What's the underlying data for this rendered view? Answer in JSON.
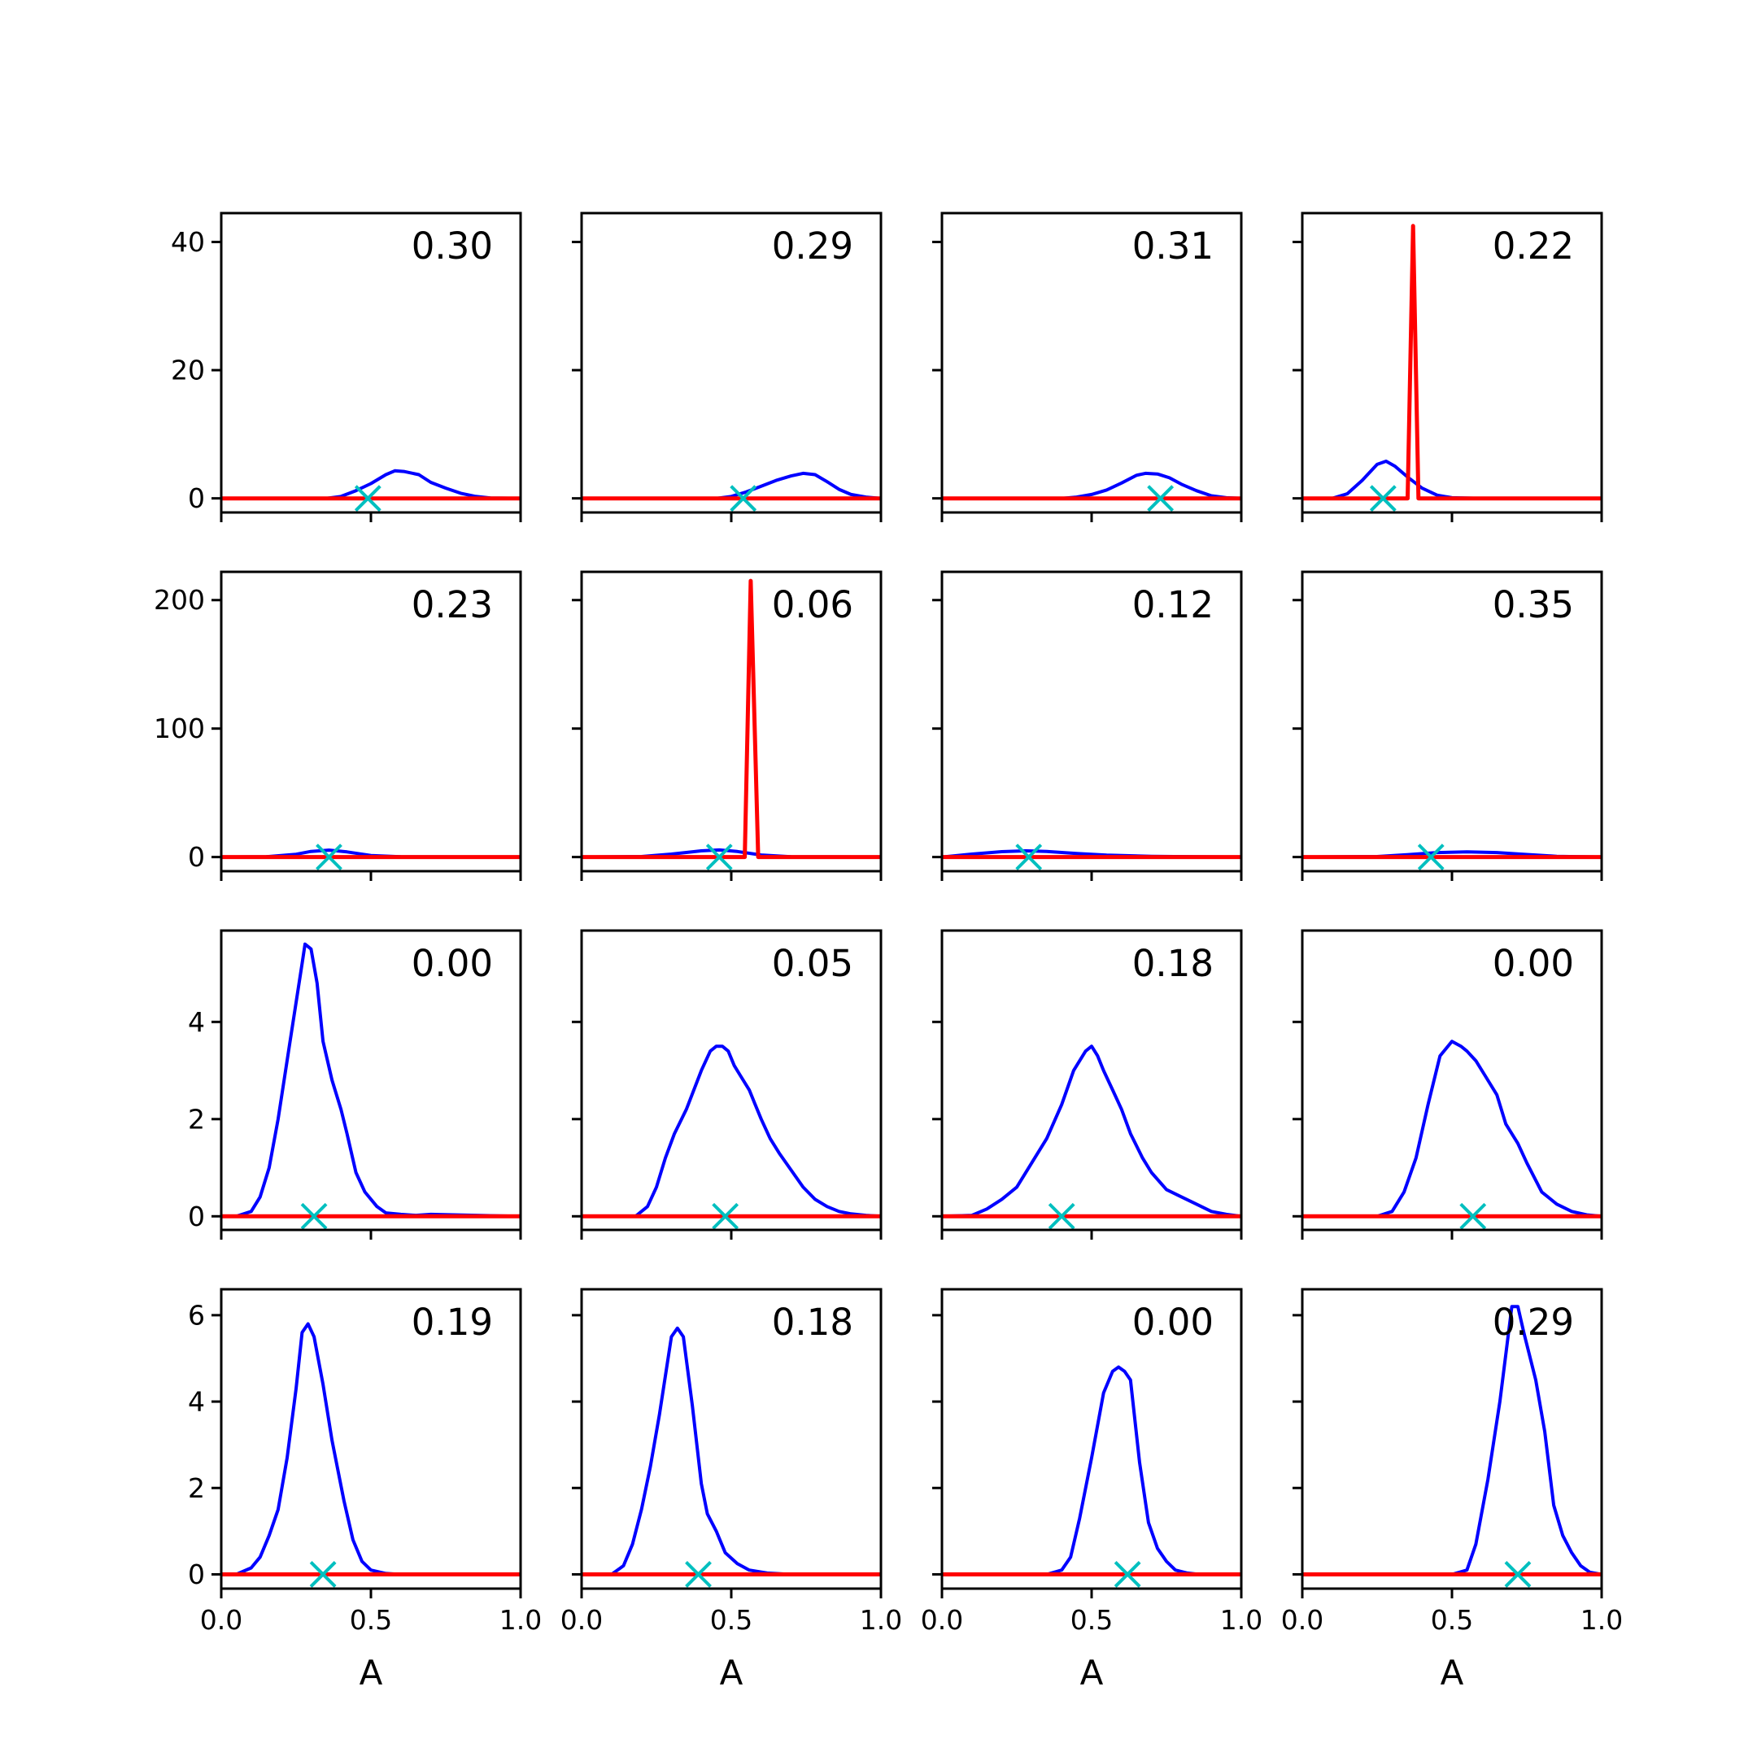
{
  "chart_data": {
    "type": "line",
    "layout": "4x4 grid of subplots, y axis shared per row, x axis shared per column",
    "xlabel": "A",
    "xlim": [
      0.0,
      1.0
    ],
    "xticks": [
      "0.0",
      "0.5",
      "1.0"
    ],
    "colors": {
      "blue_series": "#0000ff",
      "red_series": "#ff0000",
      "marker": "#00bfbf",
      "frame": "#000000"
    },
    "rows": [
      {
        "ylim": [
          -2.2,
          44.5
        ],
        "yticks": [
          {
            "value": 0,
            "label": "0"
          },
          {
            "value": 20,
            "label": "20"
          },
          {
            "value": 40,
            "label": "40"
          }
        ]
      },
      {
        "ylim": [
          -11,
          222
        ],
        "yticks": [
          {
            "value": 0,
            "label": "0"
          },
          {
            "value": 100,
            "label": "100"
          },
          {
            "value": 200,
            "label": "200"
          }
        ]
      },
      {
        "ylim": [
          -0.28,
          5.88
        ],
        "yticks": [
          {
            "value": 0,
            "label": "0"
          },
          {
            "value": 2,
            "label": "2"
          },
          {
            "value": 4,
            "label": "4"
          }
        ]
      },
      {
        "ylim": [
          -0.33,
          6.6
        ],
        "yticks": [
          {
            "value": 0,
            "label": "0"
          },
          {
            "value": 2,
            "label": "2"
          },
          {
            "value": 4,
            "label": "4"
          },
          {
            "value": 6,
            "label": "6"
          }
        ]
      }
    ],
    "panels": [
      {
        "row": 0,
        "col": 0,
        "annotation": "0.30",
        "marker_x": 0.49,
        "blue": {
          "x": [
            0,
            0.35,
            0.4,
            0.45,
            0.5,
            0.55,
            0.58,
            0.61,
            0.66,
            0.7,
            0.75,
            0.8,
            0.85,
            0.9,
            1.0
          ],
          "y": [
            0,
            0,
            0.3,
            1.2,
            2.3,
            3.7,
            4.3,
            4.2,
            3.7,
            2.5,
            1.6,
            0.8,
            0.3,
            0.05,
            0
          ]
        },
        "red": {
          "x": [
            0,
            1.0
          ],
          "y": [
            0,
            0
          ]
        }
      },
      {
        "row": 0,
        "col": 1,
        "annotation": "0.29",
        "marker_x": 0.54,
        "blue": {
          "x": [
            0,
            0.45,
            0.5,
            0.55,
            0.6,
            0.65,
            0.7,
            0.74,
            0.78,
            0.82,
            0.86,
            0.9,
            0.95,
            1.0
          ],
          "y": [
            0,
            0,
            0.3,
            1,
            1.9,
            2.8,
            3.5,
            3.9,
            3.7,
            2.6,
            1.4,
            0.6,
            0.2,
            0
          ]
        },
        "red": {
          "x": [
            0,
            1.0
          ],
          "y": [
            0,
            0
          ]
        }
      },
      {
        "row": 0,
        "col": 2,
        "annotation": "0.31",
        "marker_x": 0.73,
        "blue": {
          "x": [
            0,
            0.4,
            0.45,
            0.5,
            0.55,
            0.6,
            0.65,
            0.68,
            0.72,
            0.76,
            0.8,
            0.85,
            0.9,
            0.95,
            1.0
          ],
          "y": [
            0,
            0,
            0.2,
            0.6,
            1.3,
            2.4,
            3.6,
            3.9,
            3.8,
            3.2,
            2.2,
            1.2,
            0.4,
            0.1,
            0
          ]
        },
        "red": {
          "x": [
            0,
            1.0
          ],
          "y": [
            0,
            0
          ]
        }
      },
      {
        "row": 0,
        "col": 3,
        "annotation": "0.22",
        "marker_x": 0.27,
        "blue": {
          "x": [
            0,
            0.1,
            0.15,
            0.2,
            0.25,
            0.28,
            0.31,
            0.35,
            0.4,
            0.45,
            0.5,
            0.6,
            1.0
          ],
          "y": [
            0,
            0,
            0.7,
            2.8,
            5.3,
            5.8,
            5,
            3.4,
            1.6,
            0.5,
            0.1,
            0,
            0
          ]
        },
        "red": {
          "x": [
            0,
            0.352,
            0.37,
            0.388,
            1.0
          ],
          "y": [
            0,
            0,
            42.5,
            0,
            0
          ]
        }
      },
      {
        "row": 1,
        "col": 0,
        "annotation": "0.23",
        "marker_x": 0.36,
        "blue": {
          "x": [
            0,
            0.15,
            0.25,
            0.3,
            0.36,
            0.42,
            0.5,
            0.6,
            1.0
          ],
          "y": [
            0,
            0.3,
            2.2,
            4.4,
            5.4,
            4,
            1.2,
            0.2,
            0
          ]
        },
        "red": {
          "x": [
            0,
            1.0
          ],
          "y": [
            0,
            0
          ]
        }
      },
      {
        "row": 1,
        "col": 1,
        "annotation": "0.06",
        "marker_x": 0.46,
        "blue": {
          "x": [
            0,
            0.2,
            0.3,
            0.4,
            0.46,
            0.52,
            0.6,
            0.7,
            1.0
          ],
          "y": [
            0,
            0.4,
            2.3,
            4.8,
            5.5,
            4.3,
            1.6,
            0.3,
            0
          ]
        },
        "red": {
          "x": [
            0,
            0.545,
            0.565,
            0.59,
            1.0
          ],
          "y": [
            0,
            0,
            215,
            0,
            0
          ]
        }
      },
      {
        "row": 1,
        "col": 2,
        "annotation": "0.12",
        "marker_x": 0.29,
        "blue": {
          "x": [
            0,
            0.1,
            0.2,
            0.28,
            0.35,
            0.45,
            0.55,
            0.7,
            0.85,
            1.0
          ],
          "y": [
            0,
            2.3,
            4.2,
            4.8,
            4.4,
            2.8,
            1.5,
            0.6,
            0.2,
            0
          ]
        },
        "red": {
          "x": [
            0,
            1.0
          ],
          "y": [
            0,
            0
          ]
        }
      },
      {
        "row": 1,
        "col": 3,
        "annotation": "0.35",
        "marker_x": 0.43,
        "blue": {
          "x": [
            0,
            0.25,
            0.35,
            0.45,
            0.55,
            0.65,
            0.75,
            0.85,
            1.0
          ],
          "y": [
            0,
            0.4,
            1.8,
            3.5,
            4,
            3.5,
            2,
            0.6,
            0
          ]
        },
        "red": {
          "x": [
            0,
            1.0
          ],
          "y": [
            0,
            0
          ]
        }
      },
      {
        "row": 2,
        "col": 0,
        "annotation": "0.00",
        "marker_x": 0.31,
        "blue": {
          "x": [
            0,
            0.05,
            0.1,
            0.13,
            0.16,
            0.19,
            0.23,
            0.27,
            0.28,
            0.3,
            0.32,
            0.34,
            0.37,
            0.4,
            0.42,
            0.45,
            0.48,
            0.52,
            0.55,
            0.6,
            0.65,
            0.7,
            1.0
          ],
          "y": [
            0,
            0,
            0.1,
            0.4,
            1,
            2,
            3.6,
            5.2,
            5.6,
            5.5,
            4.8,
            3.6,
            2.8,
            2.2,
            1.7,
            0.9,
            0.5,
            0.2,
            0.07,
            0.04,
            0.02,
            0.04,
            0
          ]
        },
        "red": {
          "x": [
            0,
            1.0
          ],
          "y": [
            0,
            0
          ]
        }
      },
      {
        "row": 2,
        "col": 1,
        "annotation": "0.05",
        "marker_x": 0.48,
        "blue": {
          "x": [
            0,
            0.18,
            0.22,
            0.25,
            0.28,
            0.31,
            0.35,
            0.4,
            0.43,
            0.45,
            0.47,
            0.49,
            0.51,
            0.53,
            0.56,
            0.58,
            0.6,
            0.63,
            0.66,
            0.7,
            0.74,
            0.78,
            0.82,
            0.86,
            0.9,
            0.95,
            1.0
          ],
          "y": [
            0,
            0,
            0.2,
            0.6,
            1.2,
            1.7,
            2.2,
            3,
            3.4,
            3.5,
            3.5,
            3.4,
            3.1,
            2.9,
            2.6,
            2.3,
            2,
            1.6,
            1.3,
            0.95,
            0.6,
            0.35,
            0.2,
            0.1,
            0.05,
            0.02,
            0
          ]
        },
        "red": {
          "x": [
            0,
            1.0
          ],
          "y": [
            0,
            0
          ]
        }
      },
      {
        "row": 2,
        "col": 2,
        "annotation": "0.18",
        "marker_x": 0.4,
        "blue": {
          "x": [
            0,
            0.1,
            0.15,
            0.2,
            0.25,
            0.3,
            0.35,
            0.4,
            0.44,
            0.48,
            0.5,
            0.52,
            0.54,
            0.57,
            0.6,
            0.63,
            0.67,
            0.7,
            0.75,
            0.8,
            0.85,
            0.9,
            0.95,
            1.0
          ],
          "y": [
            0,
            0.02,
            0.15,
            0.35,
            0.6,
            1.1,
            1.6,
            2.3,
            3,
            3.4,
            3.5,
            3.3,
            3,
            2.6,
            2.2,
            1.7,
            1.2,
            0.9,
            0.55,
            0.4,
            0.25,
            0.1,
            0.04,
            0
          ]
        },
        "red": {
          "x": [
            0,
            1.0
          ],
          "y": [
            0,
            0
          ]
        }
      },
      {
        "row": 2,
        "col": 3,
        "annotation": "0.00",
        "marker_x": 0.57,
        "blue": {
          "x": [
            0,
            0.25,
            0.3,
            0.34,
            0.38,
            0.42,
            0.46,
            0.5,
            0.53,
            0.55,
            0.58,
            0.61,
            0.65,
            0.68,
            0.72,
            0.75,
            0.8,
            0.85,
            0.9,
            0.95,
            1.0
          ],
          "y": [
            0,
            0,
            0.1,
            0.5,
            1.2,
            2.3,
            3.3,
            3.6,
            3.5,
            3.4,
            3.2,
            2.9,
            2.5,
            1.9,
            1.5,
            1.1,
            0.5,
            0.25,
            0.1,
            0.03,
            0
          ]
        },
        "red": {
          "x": [
            0,
            1.0
          ],
          "y": [
            0,
            0
          ]
        }
      },
      {
        "row": 3,
        "col": 0,
        "annotation": "0.19",
        "marker_x": 0.34,
        "blue": {
          "x": [
            0,
            0.05,
            0.1,
            0.13,
            0.16,
            0.19,
            0.22,
            0.25,
            0.27,
            0.29,
            0.31,
            0.34,
            0.37,
            0.41,
            0.44,
            0.47,
            0.5,
            0.55,
            0.6,
            1.0
          ],
          "y": [
            0,
            0,
            0.15,
            0.4,
            0.9,
            1.5,
            2.7,
            4.3,
            5.6,
            5.8,
            5.5,
            4.4,
            3.1,
            1.7,
            0.8,
            0.3,
            0.1,
            0.02,
            0,
            0
          ]
        },
        "red": {
          "x": [
            0,
            1.0
          ],
          "y": [
            0,
            0
          ]
        }
      },
      {
        "row": 3,
        "col": 1,
        "annotation": "0.18",
        "marker_x": 0.39,
        "blue": {
          "x": [
            0,
            0.1,
            0.14,
            0.17,
            0.2,
            0.23,
            0.26,
            0.3,
            0.32,
            0.34,
            0.37,
            0.4,
            0.42,
            0.45,
            0.48,
            0.52,
            0.56,
            0.62,
            0.7,
            1.0
          ],
          "y": [
            0,
            0,
            0.2,
            0.7,
            1.5,
            2.5,
            3.7,
            5.5,
            5.7,
            5.5,
            3.9,
            2.1,
            1.4,
            1,
            0.5,
            0.25,
            0.1,
            0.03,
            0,
            0
          ]
        },
        "red": {
          "x": [
            0,
            1.0
          ],
          "y": [
            0,
            0
          ]
        }
      },
      {
        "row": 3,
        "col": 2,
        "annotation": "0.00",
        "marker_x": 0.62,
        "blue": {
          "x": [
            0,
            0.35,
            0.4,
            0.43,
            0.46,
            0.5,
            0.54,
            0.57,
            0.59,
            0.61,
            0.63,
            0.66,
            0.69,
            0.72,
            0.75,
            0.78,
            0.82,
            0.86,
            0.9,
            1.0
          ],
          "y": [
            0,
            0,
            0.1,
            0.4,
            1.3,
            2.7,
            4.2,
            4.7,
            4.8,
            4.7,
            4.5,
            2.6,
            1.2,
            0.6,
            0.3,
            0.1,
            0.03,
            0,
            0,
            0
          ]
        },
        "red": {
          "x": [
            0,
            1.0
          ],
          "y": [
            0,
            0
          ]
        }
      },
      {
        "row": 3,
        "col": 3,
        "annotation": "0.29",
        "marker_x": 0.72,
        "blue": {
          "x": [
            0,
            0.5,
            0.55,
            0.58,
            0.62,
            0.66,
            0.7,
            0.72,
            0.74,
            0.78,
            0.81,
            0.84,
            0.87,
            0.9,
            0.93,
            0.96,
            1.0
          ],
          "y": [
            0,
            0,
            0.1,
            0.7,
            2.2,
            4,
            6.2,
            6.2,
            5.6,
            4.5,
            3.3,
            1.6,
            0.9,
            0.5,
            0.2,
            0.05,
            0
          ]
        },
        "red": {
          "x": [
            0,
            1.0
          ],
          "y": [
            0,
            0
          ]
        }
      }
    ]
  }
}
